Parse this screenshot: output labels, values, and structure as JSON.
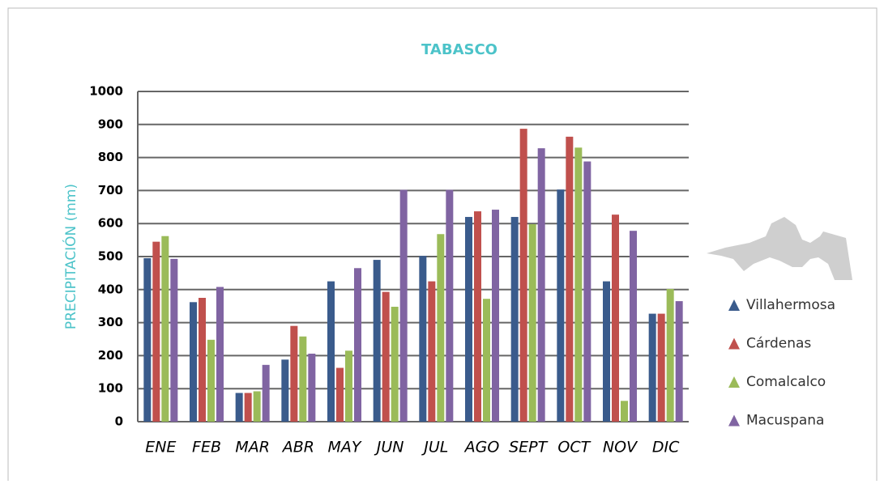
{
  "chart_data": {
    "type": "bar",
    "title": "TABASCO",
    "y_label": "PRECIPITACIÓN (mm)",
    "categories": [
      "ENE",
      "FEB",
      "MAR",
      "ABR",
      "MAY",
      "JUN",
      "JUL",
      "AGO",
      "SEPT",
      "OCT",
      "NOV",
      "DIC"
    ],
    "series": [
      {
        "name": "Villahermosa",
        "color": "#3a5b8c",
        "values": [
          495,
          362,
          87,
          188,
          425,
          490,
          502,
          620,
          620,
          703,
          425,
          327
        ]
      },
      {
        "name": "Cárdenas",
        "color": "#c0504d",
        "values": [
          545,
          375,
          87,
          290,
          163,
          393,
          425,
          637,
          887,
          863,
          627,
          327
        ]
      },
      {
        "name": "Comalcalco",
        "color": "#9bbb59",
        "values": [
          562,
          248,
          92,
          258,
          215,
          348,
          568,
          372,
          598,
          830,
          63,
          402
        ]
      },
      {
        "name": "Macuspana",
        "color": "#8064a2",
        "values": [
          493,
          408,
          172,
          206,
          465,
          702,
          702,
          642,
          828,
          788,
          578,
          365
        ]
      }
    ],
    "ylim": [
      0,
      1000
    ],
    "yticks": [
      0,
      100,
      200,
      300,
      400,
      500,
      600,
      700,
      800,
      900,
      1000
    ],
    "grid": true,
    "legend": "right"
  }
}
